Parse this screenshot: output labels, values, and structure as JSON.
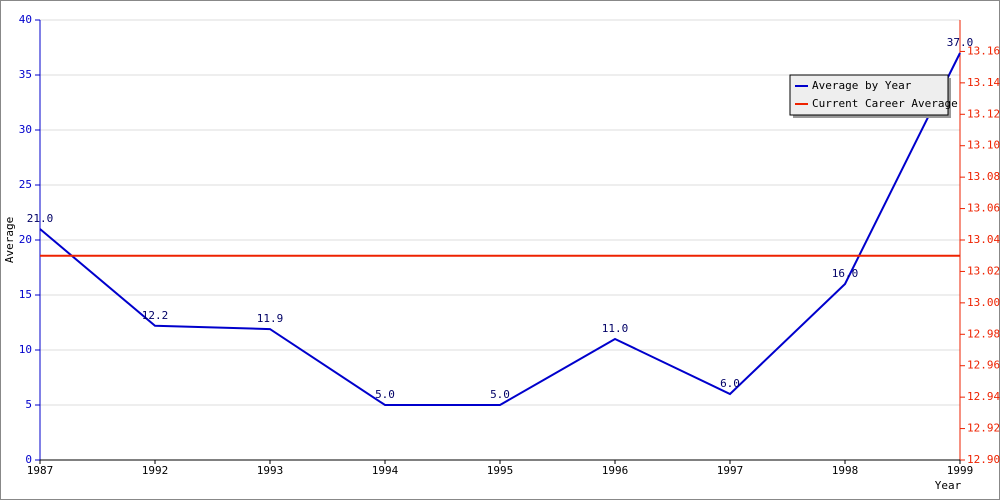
{
  "chart_data": {
    "type": "line",
    "x_label": "Year",
    "y_label": "Average",
    "categories": [
      "1987",
      "1992",
      "1993",
      "1994",
      "1995",
      "1996",
      "1997",
      "1998",
      "1999"
    ],
    "series": [
      {
        "name": "Average by Year",
        "color": "#0000cc",
        "values": [
          21.0,
          12.2,
          11.9,
          5.0,
          5.0,
          11.0,
          6.0,
          16.0,
          37.0
        ],
        "value_labels": [
          "21.0",
          "12.2",
          "11.9",
          "5.0",
          "5.0",
          "11.0",
          "6.0",
          "16.0",
          "37.0"
        ]
      },
      {
        "name": "Current Career Average",
        "color": "#ee2200",
        "axis": "y2",
        "values": [
          13.03,
          13.03,
          13.03,
          13.03,
          13.03,
          13.03,
          13.03,
          13.03,
          13.03
        ]
      }
    ],
    "ylim": [
      0,
      40
    ],
    "yticks": [
      0,
      5,
      10,
      15,
      20,
      25,
      30,
      35,
      40
    ],
    "y2lim": [
      12.9,
      13.18
    ],
    "y2ticks": [
      {
        "value": 12.9,
        "label": "12.90"
      },
      {
        "value": 12.92,
        "label": "12.92"
      },
      {
        "value": 12.94,
        "label": "12.94"
      },
      {
        "value": 12.96,
        "label": "12.96"
      },
      {
        "value": 12.98,
        "label": "12.98"
      },
      {
        "value": 13.0,
        "label": "13.00"
      },
      {
        "value": 13.02,
        "label": "13.02"
      },
      {
        "value": 13.04,
        "label": "13.04"
      },
      {
        "value": 13.06,
        "label": "13.06"
      },
      {
        "value": 13.08,
        "label": "13.08"
      },
      {
        "value": 13.1,
        "label": "13.10"
      },
      {
        "value": 13.12,
        "label": "13.12"
      },
      {
        "value": 13.14,
        "label": "13.14"
      },
      {
        "value": 13.16,
        "label": "13.16"
      }
    ],
    "grid": true
  }
}
